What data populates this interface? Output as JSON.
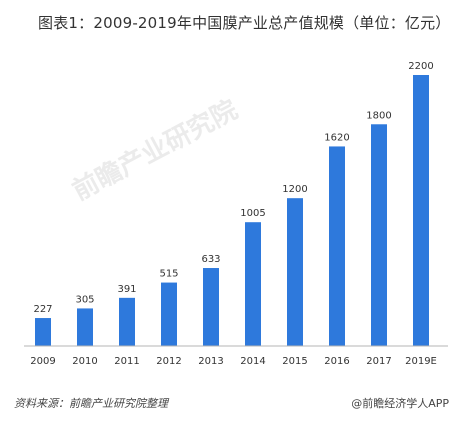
{
  "header": {
    "title": "图表1：2009-2019年中国膜产业总产值规模（单位：亿元）"
  },
  "footer": {
    "source": "资料来源：前瞻产业研究院整理",
    "credit": "@前瞻经济学人APP"
  },
  "watermark": "前瞻产业研究院",
  "chart_data": {
    "type": "bar",
    "title": "图表1：2009-2019年中国膜产业总产值规模（单位：亿元）",
    "categories": [
      "2009",
      "2010",
      "2011",
      "2012",
      "2013",
      "2014",
      "2015",
      "2016",
      "2017",
      "2019E"
    ],
    "values": [
      227,
      305,
      391,
      515,
      633,
      1005,
      1200,
      1620,
      1800,
      2200
    ],
    "unit": "亿元",
    "ylim": [
      0,
      2200
    ],
    "bar_color": "#2e79dc",
    "axis_color": "#b5b5b5",
    "grid": false,
    "legend": "none"
  }
}
